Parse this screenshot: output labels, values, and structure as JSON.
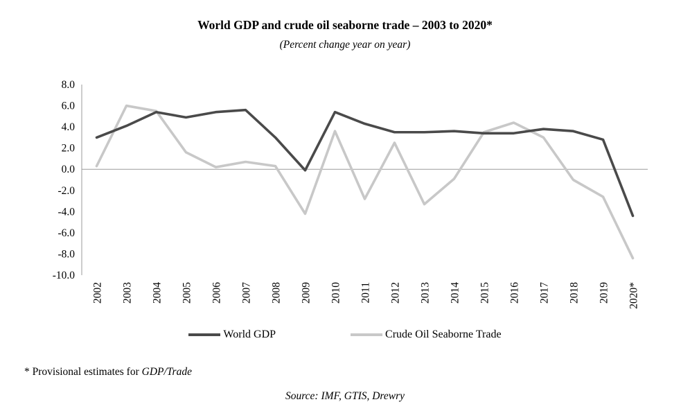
{
  "title": "World GDP and crude oil seaborne trade – 2003 to 2020*",
  "subtitle": "(Percent change year on year)",
  "footnote_prefix": "* Provisional estimates for ",
  "footnote_italic": "GDP/Trade",
  "source": "Source: IMF, GTIS, Drewry",
  "chart_data": {
    "type": "line",
    "categories": [
      "2002",
      "2003",
      "2004",
      "2005",
      "2006",
      "2007",
      "2008",
      "2009",
      "2010",
      "2011",
      "2012",
      "2013",
      "2014",
      "2015",
      "2016",
      "2017",
      "2018",
      "2019",
      "2020*"
    ],
    "series": [
      {
        "name": "World GDP",
        "color": "#4a4a4a",
        "values": [
          3.0,
          4.1,
          5.4,
          4.9,
          5.4,
          5.6,
          3.0,
          -0.1,
          5.4,
          4.3,
          3.5,
          3.5,
          3.6,
          3.4,
          3.4,
          3.8,
          3.6,
          2.8,
          -4.4
        ]
      },
      {
        "name": "Crude Oil Seaborne Trade",
        "color": "#c8c8c8",
        "values": [
          0.3,
          6.0,
          5.5,
          1.6,
          0.2,
          0.7,
          0.3,
          -4.2,
          3.6,
          -2.8,
          2.5,
          -3.3,
          -0.9,
          3.5,
          4.4,
          3.0,
          -1.0,
          -2.6,
          -8.4
        ]
      }
    ],
    "ylim": [
      -10,
      8
    ],
    "ytick_step": 2,
    "grid": false,
    "legend_position": "bottom",
    "axis_color": "#9b9b9b"
  }
}
